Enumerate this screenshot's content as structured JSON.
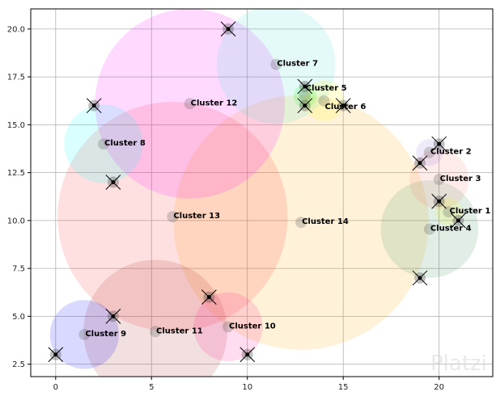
{
  "chart_data": {
    "type": "scatter",
    "title": "",
    "xlabel": "",
    "ylabel": "",
    "xlim": [
      -1.3,
      22.8
    ],
    "ylim": [
      1.85,
      21.05
    ],
    "grid": true,
    "xticks": [
      0,
      5,
      10,
      15,
      20
    ],
    "xtick_labels": [
      "0",
      "5",
      "10",
      "15",
      "20"
    ],
    "yticks": [
      2.5,
      5.0,
      7.5,
      10.0,
      12.5,
      15.0,
      17.5,
      20.0
    ],
    "ytick_labels": [
      "2.5",
      "5.0",
      "7.5",
      "10.0",
      "12.5",
      "15.0",
      "17.5",
      "20.0"
    ],
    "points": [
      {
        "x": 0,
        "y": 3
      },
      {
        "x": 3,
        "y": 5
      },
      {
        "x": 3,
        "y": 12
      },
      {
        "x": 2,
        "y": 16
      },
      {
        "x": 9,
        "y": 20
      },
      {
        "x": 8,
        "y": 6
      },
      {
        "x": 10,
        "y": 3
      },
      {
        "x": 13,
        "y": 17
      },
      {
        "x": 13,
        "y": 16
      },
      {
        "x": 15,
        "y": 16
      },
      {
        "x": 20,
        "y": 14
      },
      {
        "x": 19,
        "y": 13
      },
      {
        "x": 20,
        "y": 11
      },
      {
        "x": 21,
        "y": 10
      },
      {
        "x": 19,
        "y": 7
      }
    ],
    "clusters": [
      {
        "name": "Cluster 14",
        "x": 12.8,
        "y": 9.9,
        "r": 6.65,
        "color": "#ffa500"
      },
      {
        "name": "Cluster 13",
        "x": 6.1,
        "y": 10.2,
        "r": 6.0,
        "color": "#ff3030"
      },
      {
        "name": "Cluster 12",
        "x": 7.0,
        "y": 16.1,
        "r": 4.95,
        "color": "#ff00ff"
      },
      {
        "name": "Cluster 11",
        "x": 5.2,
        "y": 4.2,
        "r": 3.75,
        "color": "#a52a2a"
      },
      {
        "name": "Cluster 7",
        "x": 11.5,
        "y": 18.15,
        "r": 3.1,
        "color": "#40e0d0"
      },
      {
        "name": "Cluster 4",
        "x": 19.5,
        "y": 9.55,
        "r": 2.55,
        "color": "#2e8b57"
      },
      {
        "name": "Cluster 8",
        "x": 2.5,
        "y": 14.0,
        "r": 2.05,
        "color": "#00ffff"
      },
      {
        "name": "Cluster 9",
        "x": 1.5,
        "y": 4.05,
        "r": 1.8,
        "color": "#0000ff"
      },
      {
        "name": "Cluster 10",
        "x": 9.0,
        "y": 4.45,
        "r": 1.8,
        "color": "#ff1493"
      },
      {
        "name": "Cluster 3",
        "x": 20.0,
        "y": 12.15,
        "r": 1.55,
        "color": "#fa8072"
      },
      {
        "name": "Cluster 6",
        "x": 14.0,
        "y": 16.25,
        "r": 1.05,
        "color": "#ffff00"
      },
      {
        "name": "Cluster 1",
        "x": 20.5,
        "y": 10.45,
        "r": 0.7,
        "color": "#ffff00"
      },
      {
        "name": "Cluster 2",
        "x": 19.5,
        "y": 13.55,
        "r": 0.7,
        "color": "#9370db"
      },
      {
        "name": "Cluster 5",
        "x": 13.0,
        "y": 16.5,
        "r": 0.6,
        "color": "#00ff00"
      }
    ]
  },
  "watermark": "Platzi"
}
